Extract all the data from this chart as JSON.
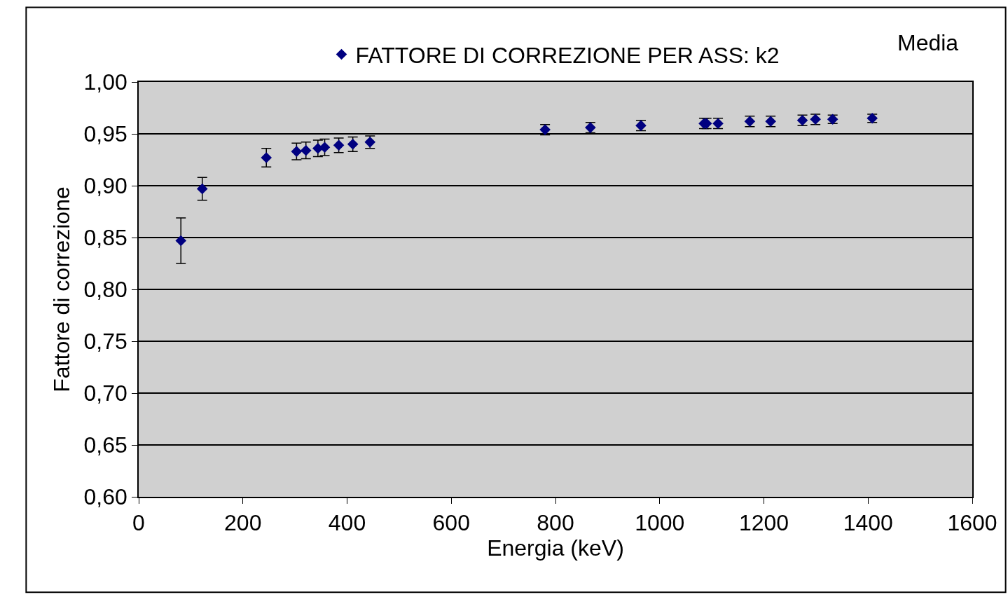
{
  "chart_data": {
    "type": "scatter",
    "xlabel": "Energia (keV)",
    "ylabel": "Fattore di correzione",
    "annotations": [
      "Media"
    ],
    "x": [
      81,
      122,
      245,
      303,
      321,
      344,
      357,
      384,
      411,
      444,
      780,
      867,
      964,
      1085,
      1090,
      1112,
      1173,
      1213,
      1274,
      1299,
      1332,
      1408
    ],
    "series": [
      {
        "name": "FATTORE DI CORREZIONE PER ASS: k2",
        "color": "#000080",
        "values": [
          0.847,
          0.897,
          0.927,
          0.933,
          0.934,
          0.936,
          0.937,
          0.939,
          0.94,
          0.942,
          0.954,
          0.956,
          0.958,
          0.96,
          0.96,
          0.96,
          0.962,
          0.962,
          0.963,
          0.964,
          0.964,
          0.965
        ],
        "errors": [
          0.022,
          0.011,
          0.009,
          0.008,
          0.008,
          0.008,
          0.008,
          0.007,
          0.007,
          0.006,
          0.005,
          0.005,
          0.005,
          0.005,
          0.005,
          0.005,
          0.005,
          0.005,
          0.005,
          0.005,
          0.004,
          0.004
        ]
      }
    ],
    "xlim": [
      0,
      1600
    ],
    "xticks": [
      0,
      200,
      400,
      600,
      800,
      1000,
      1200,
      1400,
      1600
    ],
    "ylim": [
      0.6,
      1.0
    ],
    "yticks": [
      {
        "value": 0.6,
        "label": "0,60"
      },
      {
        "value": 0.65,
        "label": "0,65"
      },
      {
        "value": 0.7,
        "label": "0,70"
      },
      {
        "value": 0.75,
        "label": "0,75"
      },
      {
        "value": 0.8,
        "label": "0,80"
      },
      {
        "value": 0.85,
        "label": "0,85"
      },
      {
        "value": 0.9,
        "label": "0,90"
      },
      {
        "value": 0.95,
        "label": "0,95"
      },
      {
        "value": 1.0,
        "label": "1,00"
      }
    ],
    "grid": "y",
    "legend": "top",
    "marker": "diamond"
  }
}
